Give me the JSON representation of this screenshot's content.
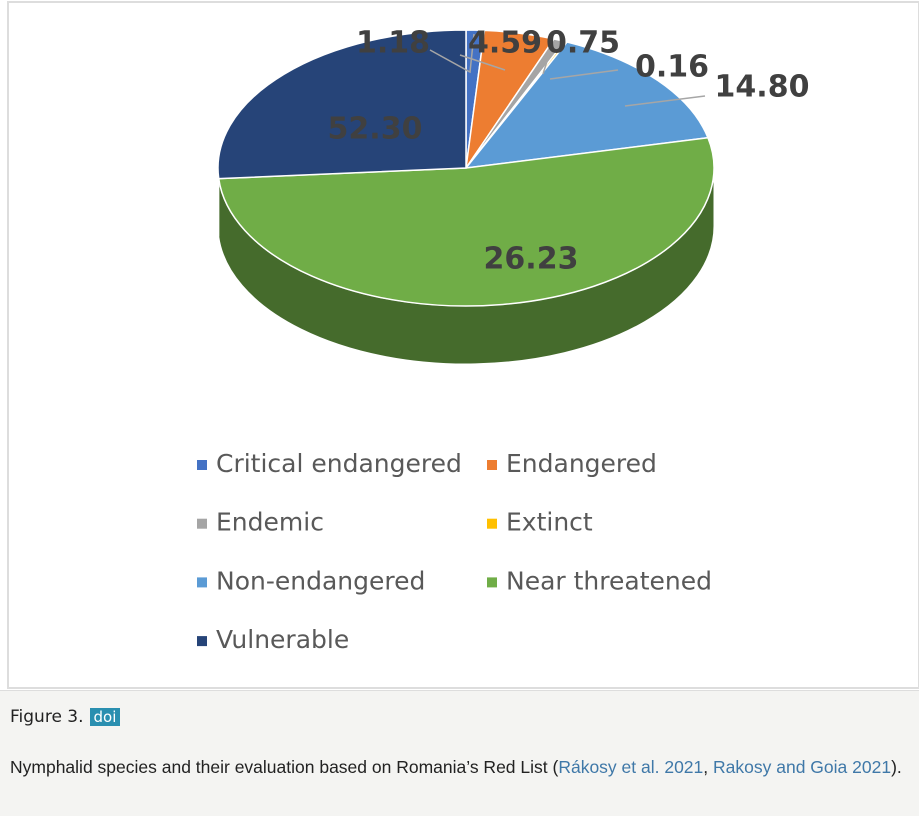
{
  "chart_data": {
    "type": "pie",
    "categories": [
      "Critical endangered",
      "Endangered",
      "Endemic",
      "Extinct",
      "Non-endangered",
      "Near threatened",
      "Vulnerable"
    ],
    "values": [
      1.18,
      4.59,
      0.75,
      0.16,
      14.8,
      52.3,
      26.23
    ],
    "value_labels": [
      "1.18",
      "4.59",
      "0.75",
      "0.16",
      "14.80",
      "52.30",
      "26.23"
    ],
    "colors": [
      "#4472c4",
      "#ed7d31",
      "#a5a5a5",
      "#ffc000",
      "#5b9bd5",
      "#70ad47",
      "#264478"
    ],
    "legend": "bottom"
  },
  "caption": {
    "label": "Figure 3.",
    "badge": "doi",
    "parts": [
      {
        "text": "Nymphalid species and their evaluation based on Romania’s Red List ("
      },
      {
        "text": "Rákosy et al. 2021",
        "link": true
      },
      {
        "text": ", "
      },
      {
        "text": "Rakosy and Goia 2021",
        "link": true
      },
      {
        "text": ")."
      }
    ]
  }
}
